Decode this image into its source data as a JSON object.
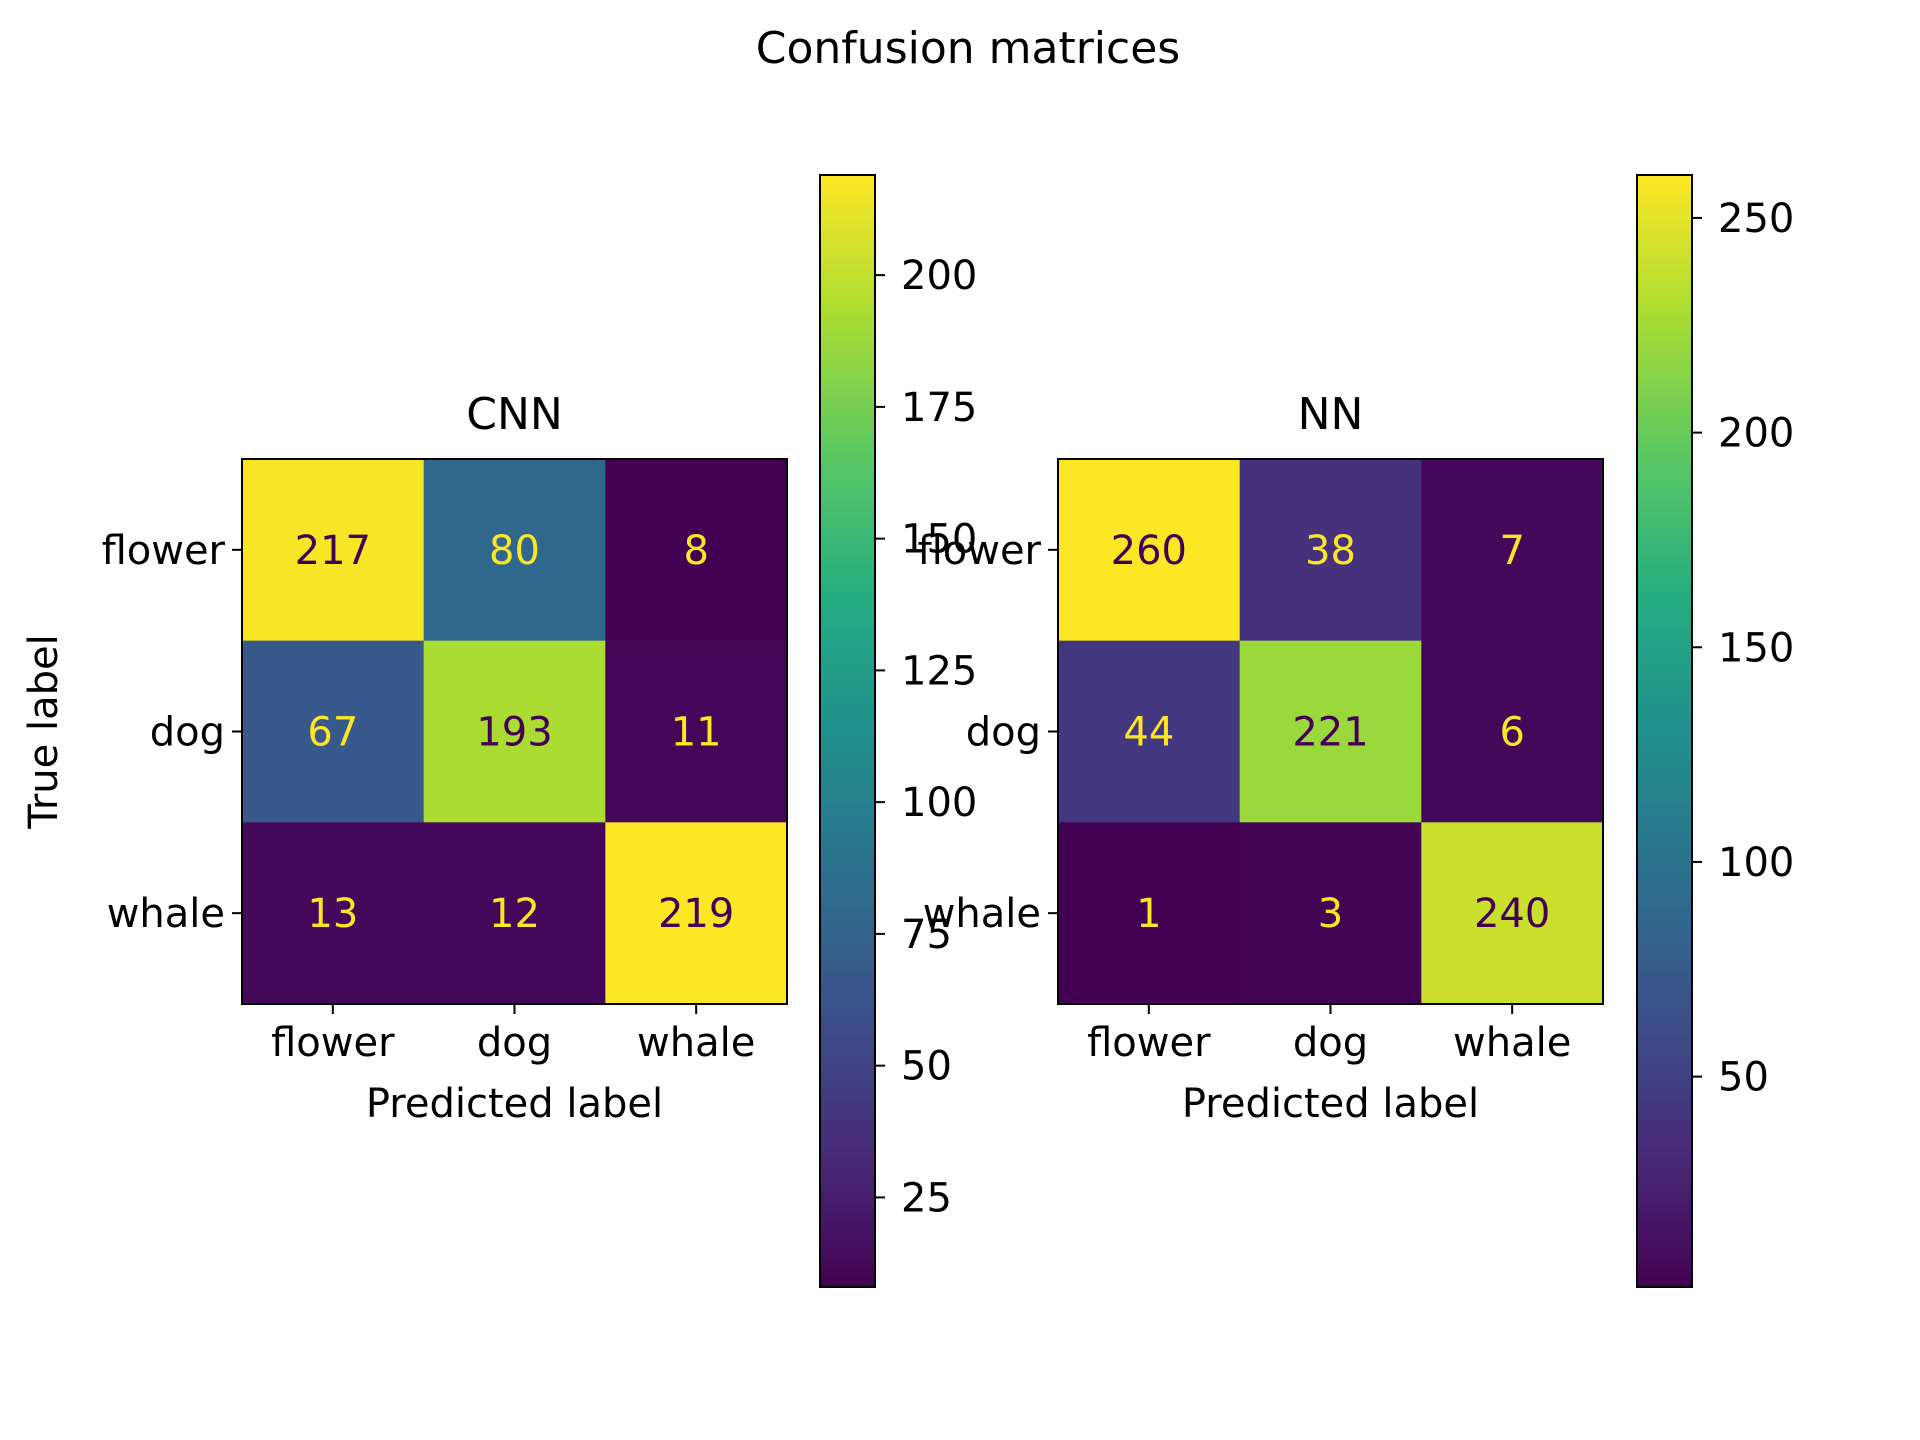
{
  "figure": {
    "title": "Confusion matrices"
  },
  "chart_data": [
    {
      "type": "heatmap",
      "title": "CNN",
      "xlabel": "Predicted label",
      "ylabel": "True label",
      "x_categories": [
        "flower",
        "dog",
        "whale"
      ],
      "y_categories": [
        "flower",
        "dog",
        "whale"
      ],
      "matrix": [
        [
          217,
          80,
          8
        ],
        [
          67,
          193,
          11
        ],
        [
          13,
          12,
          219
        ]
      ],
      "colormap": "viridis",
      "colorbar": {
        "min": 8,
        "max": 219,
        "ticks": [
          25,
          50,
          75,
          100,
          125,
          150,
          175,
          200
        ]
      },
      "grid": false
    },
    {
      "type": "heatmap",
      "title": "NN",
      "xlabel": "Predicted label",
      "ylabel": "",
      "x_categories": [
        "flower",
        "dog",
        "whale"
      ],
      "y_categories": [
        "flower",
        "dog",
        "whale"
      ],
      "matrix": [
        [
          260,
          38,
          7
        ],
        [
          44,
          221,
          6
        ],
        [
          1,
          3,
          240
        ]
      ],
      "colormap": "viridis",
      "colorbar": {
        "min": 1,
        "max": 260,
        "ticks": [
          50,
          100,
          150,
          200,
          250
        ]
      },
      "grid": false
    }
  ],
  "colors": {
    "text_on_dark": "#fde725",
    "text_on_light": "#440154",
    "axis": "#000000"
  }
}
